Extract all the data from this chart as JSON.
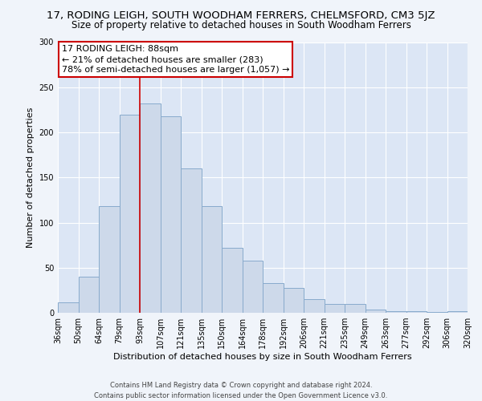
{
  "title": "17, RODING LEIGH, SOUTH WOODHAM FERRERS, CHELMSFORD, CM3 5JZ",
  "subtitle": "Size of property relative to detached houses in South Woodham Ferrers",
  "xlabel": "Distribution of detached houses by size in South Woodham Ferrers",
  "ylabel": "Number of detached properties",
  "bin_labels": [
    "36sqm",
    "50sqm",
    "64sqm",
    "79sqm",
    "93sqm",
    "107sqm",
    "121sqm",
    "135sqm",
    "150sqm",
    "164sqm",
    "178sqm",
    "192sqm",
    "206sqm",
    "221sqm",
    "235sqm",
    "249sqm",
    "263sqm",
    "277sqm",
    "292sqm",
    "306sqm",
    "320sqm"
  ],
  "bar_values": [
    12,
    40,
    118,
    220,
    232,
    218,
    160,
    118,
    72,
    58,
    33,
    28,
    15,
    10,
    10,
    4,
    2,
    2,
    1,
    2
  ],
  "bar_color": "#cdd9ea",
  "bar_edge_color": "#88aacc",
  "annotation_text_line1": "17 RODING LEIGH: 88sqm",
  "annotation_text_line2": "← 21% of detached houses are smaller (283)",
  "annotation_text_line3": "78% of semi-detached houses are larger (1,057) →",
  "annotation_box_facecolor": "#ffffff",
  "annotation_box_edgecolor": "#cc0000",
  "vline_color": "#cc0000",
  "vline_x_index": 4,
  "ylim": [
    0,
    300
  ],
  "yticks": [
    0,
    50,
    100,
    150,
    200,
    250,
    300
  ],
  "footer_line1": "Contains HM Land Registry data © Crown copyright and database right 2024.",
  "footer_line2": "Contains public sector information licensed under the Open Government Licence v3.0.",
  "background_color": "#f0f4fa",
  "plot_background_color": "#dce6f5",
  "title_fontsize": 9.5,
  "subtitle_fontsize": 8.5,
  "xlabel_fontsize": 8,
  "ylabel_fontsize": 8,
  "tick_fontsize": 7,
  "annotation_fontsize": 8,
  "footer_fontsize": 6
}
